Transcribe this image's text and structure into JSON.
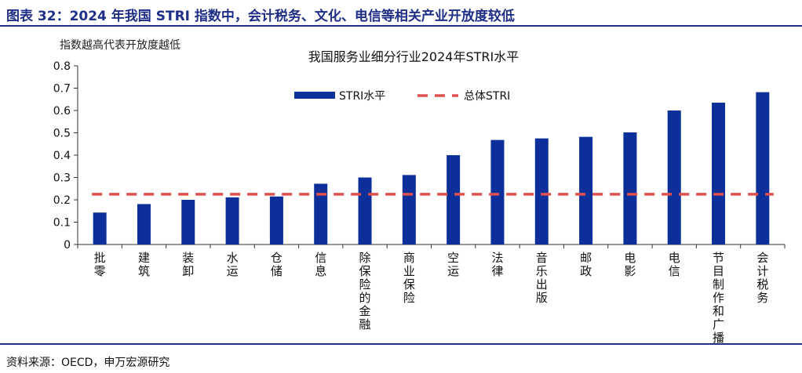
{
  "figure_title": "图表 32：2024 年我国 STRI 指数中，会计税务、文化、电信等相关产业开放度较低",
  "source_note": "资料来源：OECD，申万宏源研究",
  "colors": {
    "bar": "#0d2f9a",
    "reference": "#e0504e",
    "title_blue": "#1f2f86"
  },
  "chart_data": {
    "type": "bar",
    "title": "我国服务业细分行业2024年STRI水平",
    "ylabel": "指数越高代表开放度越低",
    "ylim": [
      0,
      0.8
    ],
    "yticks": [
      "0",
      "0.1",
      "0.2",
      "0.3",
      "0.4",
      "0.5",
      "0.6",
      "0.7",
      "0.8"
    ],
    "categories": [
      "批零",
      "建筑",
      "装卸",
      "水运",
      "仓储",
      "信息",
      "除保险的金融",
      "商业保险",
      "空运",
      "法律",
      "音乐出版",
      "邮政",
      "电影",
      "电信",
      "节目制作和广播",
      "会计税务"
    ],
    "series": [
      {
        "name": "STRI水平",
        "values": [
          0.143,
          0.181,
          0.2,
          0.211,
          0.215,
          0.272,
          0.3,
          0.311,
          0.4,
          0.468,
          0.475,
          0.482,
          0.502,
          0.6,
          0.635,
          0.682
        ]
      }
    ],
    "reference_line": {
      "name": "总体STRI",
      "value": 0.225,
      "style": "dashed"
    },
    "legend": {
      "placement": "top-center"
    },
    "grid": false
  }
}
